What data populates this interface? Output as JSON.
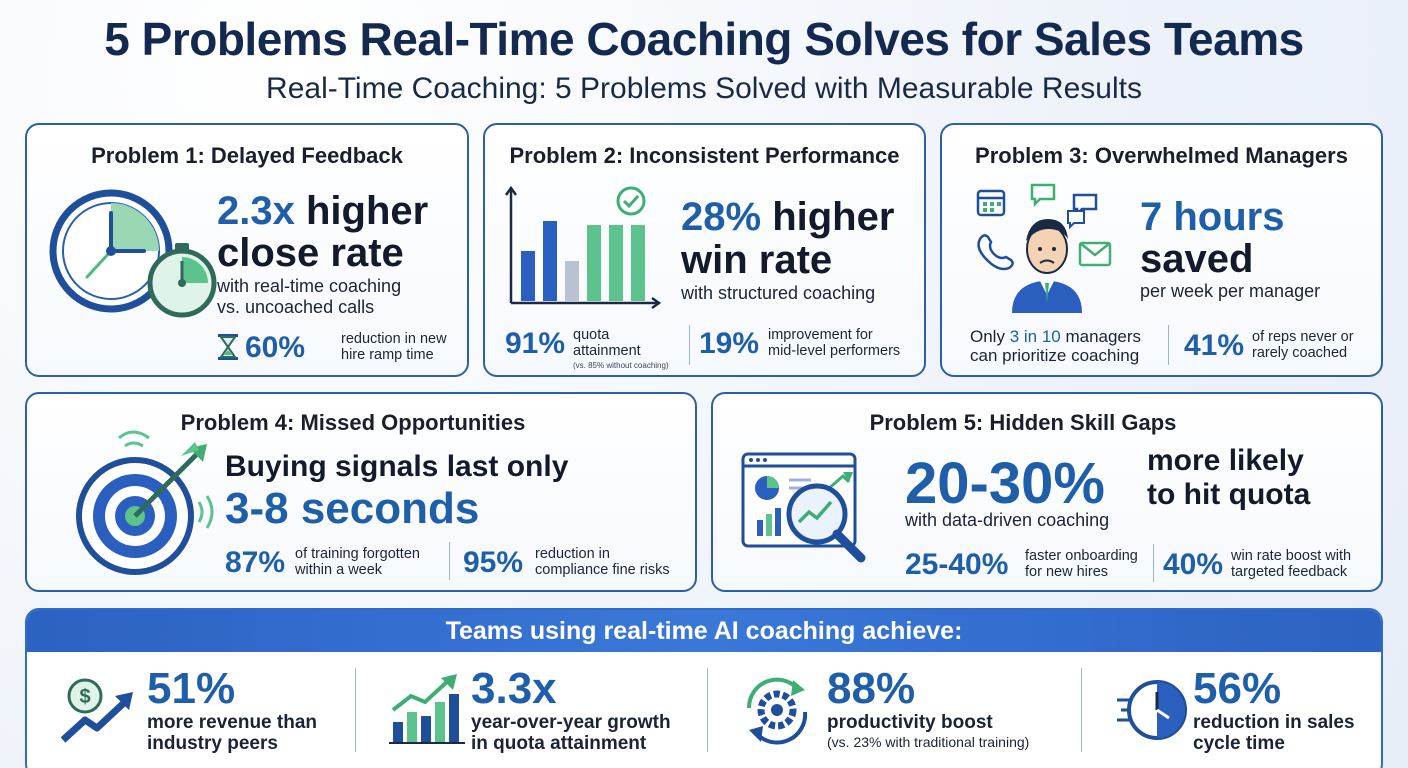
{
  "header": {
    "title": "5 Problems Real-Time Coaching Solves for Sales Teams",
    "subtitle": "Real-Time Coaching: 5 Problems Solved with Measurable Results"
  },
  "problem1": {
    "title": "Problem 1: Delayed Feedback",
    "headline_num": "2.3x",
    "headline_word1": "higher",
    "headline_line2": "close rate",
    "desc_line1": "with real-time coaching",
    "desc_line2": "vs. uncoached calls",
    "stat_num": "60%",
    "stat_line1": "reduction in new",
    "stat_line2": "hire ramp time"
  },
  "problem2": {
    "title": "Problem 2: Inconsistent Performance",
    "headline_num": "28%",
    "headline_word1": "higher",
    "headline_line2": "win rate",
    "desc": "with structured coaching",
    "stat1_num": "91%",
    "stat1_line1": "quota",
    "stat1_line2": "attainment",
    "stat1_note": "(vs. 85% without coaching)",
    "stat2_num": "19%",
    "stat2_line1": "improvement for",
    "stat2_line2": "mid-level performers"
  },
  "problem3": {
    "title": "Problem 3: Overwhelmed Managers",
    "headline_line1": "7 hours",
    "headline_line2": "saved",
    "desc": "per week per manager",
    "stat1_pre": "Only ",
    "stat1_highlight": "3 in 10",
    "stat1_post": " managers",
    "stat1_line2": "can prioritize coaching",
    "stat2_num": "41%",
    "stat2_line1": "of reps never or",
    "stat2_line2": "rarely coached"
  },
  "problem4": {
    "title": "Problem 4: Missed Opportunities",
    "headline_line1": "Buying signals last only",
    "headline_line2": "3-8 seconds",
    "stat1_num": "87%",
    "stat1_line1": "of training forgotten",
    "stat1_line2": "within a week",
    "stat2_num": "95%",
    "stat2_line1": "reduction in",
    "stat2_line2": "compliance fine risks"
  },
  "problem5": {
    "title": "Problem 5: Hidden Skill Gaps",
    "headline_num": "20-30%",
    "headline_line1": "more likely",
    "headline_line2": "to hit quota",
    "desc": "with data-driven coaching",
    "stat1_num": "25-40%",
    "stat1_line1": "faster onboarding",
    "stat1_line2": "for new hires",
    "stat2_num": "40%",
    "stat2_line1": "win rate boost with",
    "stat2_line2": "targeted feedback"
  },
  "banner": {
    "heading": "Teams using real-time AI coaching achieve:",
    "items": [
      {
        "num": "51%",
        "line1": "more revenue than",
        "line2": "industry peers",
        "icon": "dollar-growth-icon"
      },
      {
        "num": "3.3x",
        "line1": "year-over-year growth",
        "line2": "in quota attainment",
        "icon": "bar-growth-icon"
      },
      {
        "num": "88%",
        "line1": "productivity boost",
        "line2": "(vs. 23% with traditional training)",
        "icon": "gear-cycle-icon"
      },
      {
        "num": "56%",
        "line1": "reduction in sales",
        "line2": "cycle time",
        "icon": "fast-clock-icon"
      }
    ]
  },
  "colors": {
    "accent_blue": "#1f5ea8",
    "accent_green": "#3fae74",
    "border_blue": "#2f5ea8",
    "banner_blue": "#2c62c2"
  }
}
